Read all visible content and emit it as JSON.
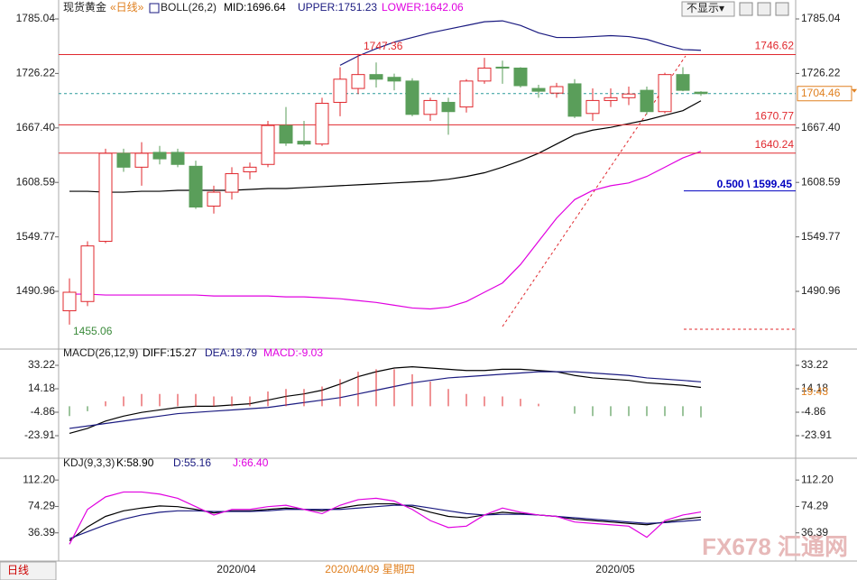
{
  "ui": {
    "button": "不显示▾",
    "tab": "日线",
    "cursor_date": "2020/04/09 星期四",
    "watermark": "FX678 汇通网"
  },
  "chart_data": [
    {
      "type": "candlestick",
      "title": "现货黄金",
      "period": "«日线»",
      "indicator": "BOLL(26,2)",
      "categories": [
        null,
        null,
        null,
        null,
        null,
        null,
        null,
        null,
        null,
        "2020/04",
        null,
        null,
        null,
        null,
        null,
        null,
        null,
        null,
        null,
        null,
        null,
        null,
        null,
        null,
        null,
        null,
        null,
        null,
        null,
        null,
        "2020/05",
        null,
        null,
        null,
        null,
        null
      ],
      "open": [
        1470,
        1480,
        1545,
        1640,
        1625,
        1641,
        1641,
        1626,
        1583,
        1598,
        1620,
        1628,
        1670,
        1653,
        1650,
        1695,
        1710,
        1725,
        1722,
        1718,
        1682,
        1695,
        1690,
        1718,
        1733,
        1732,
        1710,
        1705,
        1715,
        1683,
        1697,
        1700,
        1708,
        1685,
        1725,
        1706
      ],
      "high": [
        1505,
        1545,
        1645,
        1645,
        1652,
        1648,
        1645,
        1632,
        1605,
        1625,
        1630,
        1675,
        1690,
        1675,
        1700,
        1733,
        1747.36,
        1738,
        1726,
        1721,
        1700,
        1700,
        1720,
        1743,
        1740,
        1733,
        1714,
        1716,
        1720,
        1710,
        1710,
        1712,
        1712,
        1727,
        1733,
        1707
      ],
      "low": [
        1455.06,
        1475,
        1543,
        1620,
        1605,
        1628,
        1625,
        1580,
        1575,
        1590,
        1612,
        1625,
        1648,
        1648,
        1648,
        1680,
        1704,
        1711,
        1708,
        1680,
        1675,
        1660,
        1684,
        1715,
        1715,
        1711,
        1700,
        1700,
        1678,
        1675,
        1690,
        1692,
        1682,
        1683,
        1707,
        1702
      ],
      "close": [
        1490,
        1540,
        1640,
        1625,
        1640,
        1634,
        1628,
        1582,
        1598,
        1618,
        1625,
        1670,
        1651,
        1650,
        1694,
        1720,
        1725,
        1720,
        1718,
        1682,
        1697,
        1685,
        1718,
        1732,
        1732,
        1713,
        1707,
        1712,
        1680,
        1697,
        1700,
        1704,
        1685,
        1725,
        1708,
        1704.46
      ],
      "up_color": "#e0282e",
      "down_color": "#5a9e5a",
      "series": [
        {
          "name": "MID:1696.64",
          "color": "#000000",
          "values": [
            1599,
            1599,
            1598,
            1598,
            1599,
            1599,
            1600,
            1600,
            1600,
            1600,
            1601,
            1602,
            1602,
            1603,
            1604,
            1605,
            1606,
            1607,
            1608,
            1609,
            1610,
            1612,
            1615,
            1619,
            1625,
            1632,
            1640,
            1650,
            1660,
            1665,
            1668,
            1672,
            1676,
            1681,
            1686,
            1696.64
          ]
        },
        {
          "name": "UPPER:1751.23",
          "color": "#1a1a80",
          "values": [
            null,
            null,
            null,
            null,
            null,
            null,
            null,
            null,
            null,
            null,
            null,
            null,
            null,
            null,
            null,
            1735,
            1745,
            1753,
            1760,
            1765,
            1770,
            1774,
            1778,
            1782,
            1783,
            1778,
            1770,
            1765,
            1765,
            1766,
            1767,
            1766,
            1763,
            1757,
            1752,
            1751.23
          ]
        },
        {
          "name": "LOWER:1642.06",
          "color": "#e000e0",
          "values": [
            1488,
            1488,
            1487,
            1487,
            1487,
            1487,
            1487,
            1487,
            1486,
            1486,
            1486,
            1486,
            1485,
            1485,
            1484,
            1483,
            1481,
            1479,
            1476,
            1473,
            1472,
            1474,
            1480,
            1490,
            1500,
            1520,
            1545,
            1570,
            1590,
            1600,
            1605,
            1608,
            1615,
            1625,
            1635,
            1642.06
          ]
        }
      ],
      "levels": [
        1746.62,
        1670.77,
        1640.24
      ],
      "fib": {
        "value": 1599.45,
        "label": "0.500 \\ 1599.45"
      },
      "ylim": [
        1430.6,
        1793.8
      ],
      "yticks": [
        1785.04,
        1726.22,
        {
          "value": 1667.4,
          "label": "1667.40"
        },
        1608.59,
        1549.77,
        1490.96
      ]
    },
    {
      "type": "macd",
      "title": "MACD(26,12,9)",
      "side_label": 19.43,
      "series": [
        {
          "name": "DIFF:15.27",
          "color": "#000000",
          "style": "line",
          "values": [
            -22,
            -18,
            -12,
            -8,
            -5,
            -3,
            -1,
            0,
            0,
            1,
            2,
            5,
            8,
            10,
            13,
            18,
            24,
            28,
            31,
            32,
            31,
            30,
            29,
            29,
            30,
            30,
            29,
            28,
            25,
            23,
            22,
            21,
            19,
            18,
            17,
            15.27
          ]
        },
        {
          "name": "DEA:19.79",
          "color": "#1a1a80",
          "style": "line",
          "values": [
            -18,
            -16,
            -14,
            -12,
            -10,
            -8,
            -6,
            -5,
            -4,
            -3,
            -2,
            -1,
            1,
            3,
            5,
            7,
            10,
            13,
            16,
            19,
            21,
            23,
            24,
            25,
            26,
            27,
            28,
            28,
            28,
            27,
            26,
            25,
            23,
            22,
            21,
            19.79
          ]
        },
        {
          "name": "MACD:-9.03",
          "color": "#e000e0",
          "style": "bar",
          "up_color": "#e0282e",
          "down_color": "#3a8a3a",
          "values": [
            -8,
            -4,
            4,
            8,
            10,
            10,
            10,
            10,
            8,
            8,
            8,
            12,
            14,
            14,
            16,
            22,
            28,
            30,
            30,
            26,
            20,
            14,
            10,
            8,
            8,
            6,
            2,
            0,
            -6,
            -8,
            -8,
            -8,
            -8,
            -8,
            -8,
            -9.03
          ]
        }
      ],
      "ylim": [
        -40,
        44.2
      ],
      "yticks": [
        33.22,
        14.18,
        -4.86,
        -23.91
      ]
    },
    {
      "type": "kdj",
      "title": "KDJ(9,3,3)",
      "series": [
        {
          "name": "K:58.90",
          "color": "#000000",
          "style": "line",
          "values": [
            25,
            45,
            60,
            68,
            72,
            75,
            74,
            70,
            65,
            68,
            68,
            70,
            72,
            70,
            68,
            72,
            76,
            78,
            78,
            74,
            66,
            60,
            58,
            62,
            66,
            64,
            62,
            60,
            56,
            54,
            52,
            50,
            48,
            52,
            56,
            58.9
          ]
        },
        {
          "name": "D:55.16",
          "color": "#1a1a80",
          "style": "line",
          "values": [
            28,
            38,
            48,
            56,
            62,
            66,
            68,
            68,
            67,
            67,
            67,
            68,
            70,
            70,
            70,
            70,
            72,
            74,
            76,
            76,
            72,
            68,
            64,
            62,
            63,
            63,
            62,
            60,
            58,
            56,
            54,
            52,
            50,
            51,
            53,
            55.16
          ]
        },
        {
          "name": "J:66.40",
          "color": "#e000e0",
          "style": "line",
          "values": [
            20,
            70,
            88,
            95,
            95,
            92,
            86,
            74,
            62,
            70,
            70,
            74,
            76,
            70,
            64,
            76,
            84,
            86,
            82,
            70,
            54,
            44,
            46,
            62,
            72,
            66,
            62,
            60,
            52,
            50,
            48,
            46,
            30,
            54,
            62,
            66.4
          ]
        }
      ],
      "ylim": [
        -1.5,
        138.3
      ],
      "yticks": [
        {
          "value": 112.2,
          "label": "112.20"
        },
        74.29,
        36.39
      ]
    }
  ]
}
